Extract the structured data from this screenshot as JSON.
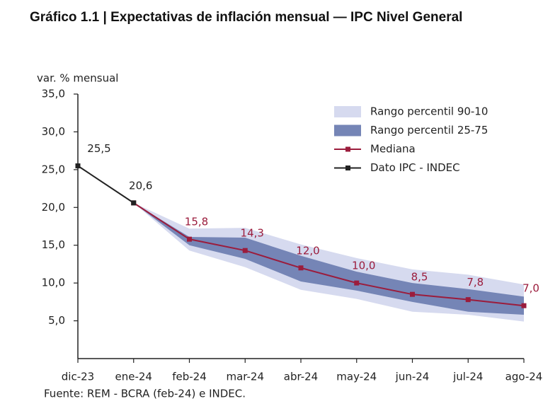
{
  "chart_data": {
    "type": "line",
    "title": "Gráfico 1.1 | Expectativas de inflación mensual — IPC Nivel General",
    "y_label": "var. % mensual",
    "source": "Fuente: REM - BCRA (feb-24) e INDEC.",
    "categories": [
      "dic-23",
      "ene-24",
      "feb-24",
      "mar-24",
      "abr-24",
      "may-24",
      "jun-24",
      "jul-24",
      "ago-24"
    ],
    "ylim": [
      0,
      35
    ],
    "yticks": [
      {
        "value": 5,
        "label": "5,0"
      },
      {
        "value": 10,
        "label": "10,0"
      },
      {
        "value": 15,
        "label": "15,0"
      },
      {
        "value": 20,
        "label": "20,0"
      },
      {
        "value": 25,
        "label": "25,0"
      },
      {
        "value": 30,
        "label": "30,0"
      },
      {
        "value": 35,
        "label": "35,0"
      }
    ],
    "series": [
      {
        "name": "Rango percentil 90-10",
        "kind": "band",
        "color": "#d6daef",
        "low": [
          null,
          20.6,
          14.3,
          12.1,
          9.1,
          7.9,
          6.2,
          5.8,
          4.9
        ],
        "high": [
          null,
          20.6,
          17.2,
          17.3,
          15.1,
          13.3,
          11.8,
          11.1,
          9.8
        ]
      },
      {
        "name": "Rango percentil 25-75",
        "kind": "band",
        "color": "#7585b6",
        "low": [
          null,
          20.6,
          15.0,
          13.2,
          10.2,
          9.0,
          7.5,
          6.2,
          5.8
        ],
        "high": [
          null,
          20.6,
          16.1,
          16.0,
          13.6,
          11.5,
          10.0,
          9.2,
          8.2
        ]
      },
      {
        "name": "Mediana",
        "kind": "line",
        "color": "#9b1c3c",
        "values": [
          null,
          20.6,
          15.8,
          14.3,
          12.0,
          10.0,
          8.5,
          7.8,
          7.0
        ],
        "value_labels": [
          null,
          null,
          "15,8",
          "14,3",
          "12,0",
          "10,0",
          "8,5",
          "7,8",
          "7,0"
        ]
      },
      {
        "name": "Dato IPC - INDEC",
        "kind": "line",
        "color": "#222222",
        "values": [
          25.5,
          20.6,
          null,
          null,
          null,
          null,
          null,
          null,
          null
        ],
        "value_labels": [
          "25,5",
          "20,6",
          null,
          null,
          null,
          null,
          null,
          null,
          null
        ]
      }
    ]
  }
}
